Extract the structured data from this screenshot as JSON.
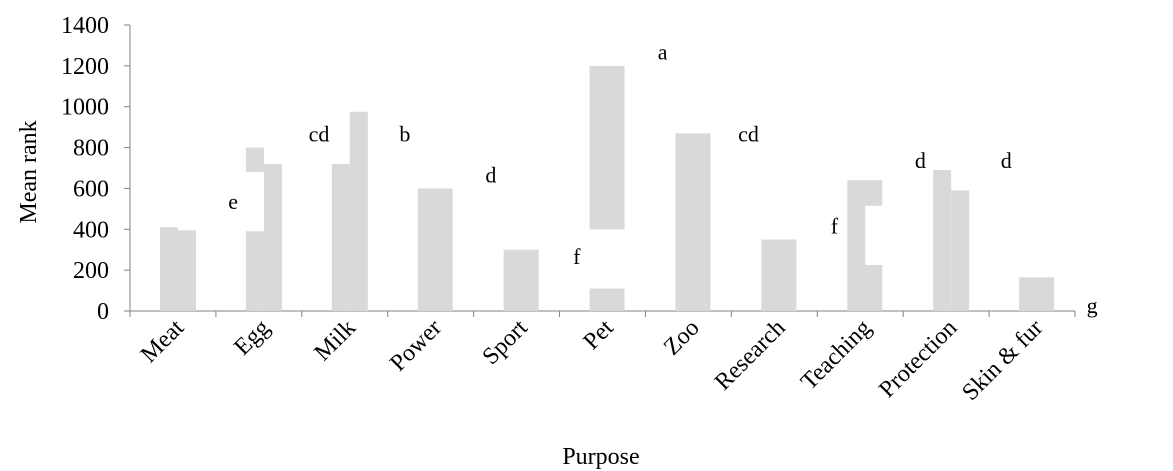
{
  "chart_data": {
    "type": "bar",
    "title": "",
    "xlabel": "Purpose",
    "ylabel": "Mean rank",
    "ylim": [
      0,
      1400
    ],
    "yticks": [
      0,
      200,
      400,
      600,
      800,
      1000,
      1200,
      1400
    ],
    "grid": false,
    "legend": "none",
    "bar_color": "#d9d9d9",
    "categories": [
      "Meat",
      "Egg",
      "Milk",
      "Power",
      "Sport",
      "Pet",
      "Zoo",
      "Research",
      "Teaching",
      "Protection",
      "Skin & fur"
    ],
    "segments": [
      {
        "category": "Meat",
        "position": "left",
        "low": 0,
        "high": 410
      },
      {
        "category": "Meat",
        "position": "right",
        "low": 0,
        "high": 395
      },
      {
        "category": "Egg",
        "position": "left",
        "low": 0,
        "high": 390
      },
      {
        "category": "Egg",
        "position": "left",
        "low": 680,
        "high": 800
      },
      {
        "category": "Egg",
        "position": "right",
        "low": 0,
        "high": 720
      },
      {
        "category": "Milk",
        "position": "left",
        "low": 0,
        "high": 720
      },
      {
        "category": "Milk",
        "position": "right",
        "low": 0,
        "high": 975
      },
      {
        "category": "Power",
        "position": "full",
        "low": 0,
        "high": 600
      },
      {
        "category": "Sport",
        "position": "full",
        "low": 0,
        "high": 300
      },
      {
        "category": "Pet",
        "position": "full",
        "low": 0,
        "high": 110
      },
      {
        "category": "Pet",
        "position": "full",
        "low": 400,
        "high": 1200
      },
      {
        "category": "Zoo",
        "position": "full",
        "low": 0,
        "high": 870
      },
      {
        "category": "Research",
        "position": "full",
        "low": 0,
        "high": 350
      },
      {
        "category": "Teaching",
        "position": "full",
        "low": 0,
        "high": 225
      },
      {
        "category": "Teaching",
        "position": "left",
        "low": 225,
        "high": 515
      },
      {
        "category": "Teaching",
        "position": "full",
        "low": 515,
        "high": 640
      },
      {
        "category": "Protection",
        "position": "left",
        "low": 0,
        "high": 690
      },
      {
        "category": "Protection",
        "position": "right",
        "low": 0,
        "high": 590
      },
      {
        "category": "Skin & fur",
        "position": "full",
        "low": 0,
        "high": 165
      }
    ],
    "annotations": [
      {
        "text": "e",
        "x_slot": 1.2,
        "y": 500
      },
      {
        "text": "cd",
        "x_slot": 2.2,
        "y": 830
      },
      {
        "text": "b",
        "x_slot": 3.2,
        "y": 830
      },
      {
        "text": "d",
        "x_slot": 4.2,
        "y": 630
      },
      {
        "text": "f",
        "x_slot": 5.2,
        "y": 230
      },
      {
        "text": "a",
        "x_slot": 6.2,
        "y": 1230
      },
      {
        "text": "cd",
        "x_slot": 7.2,
        "y": 830
      },
      {
        "text": "f",
        "x_slot": 8.2,
        "y": 380
      },
      {
        "text": "d",
        "x_slot": 9.2,
        "y": 700
      },
      {
        "text": "d",
        "x_slot": 10.2,
        "y": 700
      },
      {
        "text": "g",
        "x_slot": 11.2,
        "y": -10
      }
    ]
  }
}
